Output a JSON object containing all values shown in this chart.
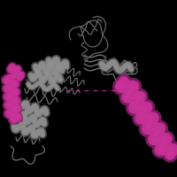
{
  "background_color": "#000000",
  "figure_size": [
    2.0,
    2.0
  ],
  "dpi": 100,
  "gray": "#909090",
  "gray_dark": "#555555",
  "gray_mid": "#707070",
  "magenta": "#cc3399",
  "magenta_dark": "#992277",
  "magenta_light": "#dd55bb"
}
